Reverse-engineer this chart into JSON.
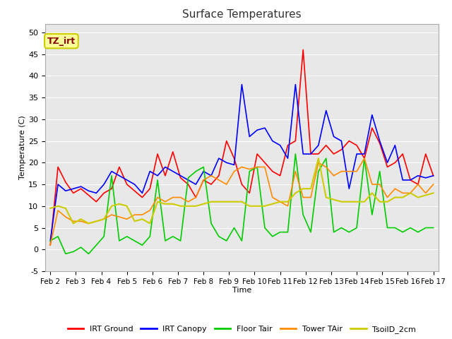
{
  "title": "Surface Temperatures",
  "xlabel": "Time",
  "ylabel": "Temperature (C)",
  "ylim": [
    -5,
    52
  ],
  "yticks": [
    -5,
    0,
    5,
    10,
    15,
    20,
    25,
    30,
    35,
    40,
    45,
    50
  ],
  "xtick_labels": [
    "Feb 2",
    "Feb 3",
    "Feb 4",
    "Feb 5",
    "Feb 6",
    "Feb 7",
    "Feb 8",
    "Feb 9",
    "Feb 10",
    "Feb 11",
    "Feb 12",
    "Feb 13",
    "Feb 14",
    "Feb 15",
    "Feb 16",
    "Feb 17"
  ],
  "annotation_text": "TZ_irt",
  "annotation_color": "#8B0000",
  "annotation_bg": "#FFFF99",
  "annotation_edge": "#CCCC00",
  "fig_bg": "#FFFFFF",
  "plot_bg": "#E8E8E8",
  "grid_color": "#FFFFFF",
  "series_order": [
    "IRT_Ground",
    "IRT_Canopy",
    "Floor_Tair",
    "Tower_TAir",
    "TsoilD_2cm"
  ],
  "legend_labels": [
    "IRT Ground",
    "IRT Canopy",
    "Floor Tair",
    "Tower TAir",
    "TsoilD_2cm"
  ],
  "series": {
    "IRT_Ground": {
      "color": "#FF0000",
      "linewidth": 1.2,
      "values": [
        1.0,
        19.0,
        15.5,
        13.0,
        14.0,
        12.5,
        11.0,
        13.0,
        14.0,
        19.0,
        15.0,
        13.5,
        12.0,
        14.0,
        22.0,
        17.0,
        22.5,
        16.5,
        15.0,
        12.0,
        16.0,
        15.0,
        17.0,
        25.0,
        21.0,
        15.0,
        13.0,
        22.0,
        20.0,
        18.0,
        17.0,
        24.0,
        25.0,
        46.0,
        22.0,
        22.0,
        24.0,
        22.0,
        23.0,
        25.0,
        24.0,
        21.0,
        28.0,
        24.5,
        19.0,
        20.0,
        22.0,
        16.0,
        15.0,
        22.0,
        17.0
      ]
    },
    "IRT_Canopy": {
      "color": "#0000FF",
      "linewidth": 1.2,
      "values": [
        2.0,
        15.0,
        13.5,
        14.0,
        14.5,
        13.5,
        13.0,
        15.0,
        18.0,
        17.0,
        16.0,
        15.0,
        13.0,
        18.0,
        17.0,
        19.0,
        18.0,
        17.0,
        16.0,
        15.0,
        18.0,
        17.0,
        21.0,
        20.0,
        19.5,
        38.0,
        26.0,
        27.5,
        28.0,
        25.0,
        24.0,
        21.0,
        38.0,
        22.0,
        22.0,
        24.0,
        32.0,
        26.0,
        25.0,
        14.0,
        22.0,
        22.0,
        31.0,
        25.0,
        20.0,
        24.0,
        16.0,
        16.0,
        17.0,
        16.5,
        17.0
      ]
    },
    "Floor_Tair": {
      "color": "#00CC00",
      "linewidth": 1.2,
      "values": [
        2.0,
        3.0,
        -1.0,
        -0.5,
        0.5,
        -1.0,
        1.0,
        3.0,
        17.0,
        2.0,
        3.0,
        2.0,
        1.0,
        3.0,
        16.0,
        2.0,
        3.0,
        2.0,
        16.5,
        18.0,
        19.0,
        6.0,
        3.0,
        2.0,
        5.0,
        2.0,
        18.0,
        19.0,
        5.0,
        3.0,
        4.0,
        4.0,
        22.0,
        8.0,
        4.0,
        18.0,
        21.0,
        4.0,
        5.0,
        4.0,
        5.0,
        21.0,
        8.0,
        18.0,
        5.0,
        5.0,
        4.0,
        5.0,
        4.0,
        5.0,
        5.0
      ]
    },
    "Tower_TAir": {
      "color": "#FF8C00",
      "linewidth": 1.2,
      "values": [
        1.0,
        9.0,
        7.5,
        6.5,
        6.5,
        6.0,
        6.5,
        7.0,
        8.0,
        7.5,
        7.0,
        8.0,
        8.0,
        9.0,
        12.0,
        11.0,
        12.0,
        12.0,
        11.0,
        12.0,
        16.0,
        17.0,
        16.0,
        15.0,
        18.0,
        19.0,
        18.5,
        19.0,
        19.0,
        12.0,
        11.0,
        10.0,
        18.0,
        12.0,
        12.0,
        20.0,
        19.0,
        17.0,
        18.0,
        18.0,
        18.0,
        21.0,
        15.0,
        15.0,
        12.0,
        14.0,
        13.0,
        13.0,
        15.0,
        13.0,
        15.0
      ]
    },
    "TsoilD_2cm": {
      "color": "#CCCC00",
      "linewidth": 1.5,
      "values": [
        9.5,
        10.0,
        9.5,
        6.0,
        7.0,
        6.0,
        6.5,
        7.0,
        10.0,
        10.5,
        10.0,
        6.5,
        7.0,
        6.0,
        11.0,
        10.5,
        10.5,
        10.0,
        10.0,
        10.0,
        10.5,
        11.0,
        11.0,
        11.0,
        11.0,
        11.0,
        10.0,
        10.0,
        10.0,
        10.5,
        11.0,
        11.0,
        13.0,
        14.0,
        14.0,
        21.0,
        12.0,
        11.5,
        11.0,
        11.0,
        11.0,
        11.0,
        13.0,
        11.0,
        11.0,
        12.0,
        12.0,
        13.0,
        12.0,
        12.5,
        13.0
      ]
    }
  }
}
